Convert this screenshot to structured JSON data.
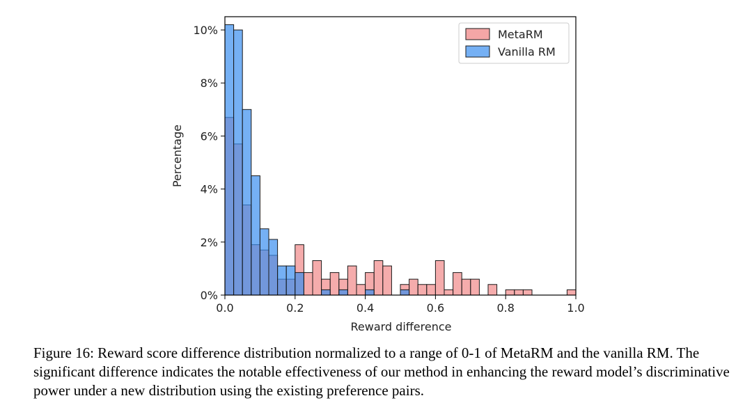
{
  "chart_data": {
    "type": "bar",
    "xlabel": "Reward difference",
    "ylabel": "Percentage",
    "xlim": [
      0.0,
      1.0
    ],
    "ylim": [
      0,
      10.5
    ],
    "xticks": [
      "0.0",
      "0.2",
      "0.4",
      "0.6",
      "0.8",
      "1.0"
    ],
    "yticks": [
      "0%",
      "2%",
      "4%",
      "6%",
      "8%",
      "10%"
    ],
    "legend_position": "top-right",
    "bin_width": 0.025,
    "bin_starts": [
      0.0,
      0.025,
      0.05,
      0.075,
      0.1,
      0.125,
      0.15,
      0.175,
      0.2,
      0.225,
      0.25,
      0.275,
      0.3,
      0.325,
      0.35,
      0.375,
      0.4,
      0.425,
      0.45,
      0.475,
      0.5,
      0.525,
      0.55,
      0.575,
      0.6,
      0.625,
      0.65,
      0.675,
      0.7,
      0.725,
      0.75,
      0.775,
      0.8,
      0.825,
      0.85,
      0.875,
      0.9,
      0.925,
      0.95,
      0.975
    ],
    "series": [
      {
        "name": "MetaRM",
        "color": "#f08080",
        "values": [
          6.7,
          5.7,
          3.4,
          1.9,
          1.7,
          1.5,
          0.6,
          0.6,
          1.9,
          0.85,
          1.3,
          0.6,
          0.85,
          0.6,
          1.1,
          0.4,
          0.85,
          1.3,
          1.1,
          0.0,
          0.4,
          0.6,
          0.4,
          0.4,
          1.3,
          0.2,
          0.85,
          0.6,
          0.6,
          0.0,
          0.4,
          0.0,
          0.2,
          0.2,
          0.2,
          0.0,
          0.0,
          0.0,
          0.0,
          0.2
        ]
      },
      {
        "name": "Vanilla RM",
        "color": "#3b8ef0",
        "values": [
          10.2,
          10.0,
          7.0,
          4.5,
          2.5,
          2.1,
          1.1,
          1.1,
          0.85,
          0.0,
          0.0,
          0.2,
          0.0,
          0.2,
          0.0,
          0.0,
          0.2,
          0.0,
          0.0,
          0.0,
          0.2,
          0.0,
          0.0,
          0.0,
          0.0,
          0.0,
          0.0,
          0.0,
          0.0,
          0.0,
          0.0,
          0.0,
          0.0,
          0.0,
          0.0,
          0.0,
          0.0,
          0.0,
          0.0,
          0.0
        ]
      }
    ]
  },
  "caption": "Figure 16: Reward score difference distribution normalized to a range of 0-1 of MetaRM and the vanilla RM. The significant difference indicates the notable effectiveness of our method in enhancing the reward model’s discriminative power under a new distribution using the existing preference pairs."
}
